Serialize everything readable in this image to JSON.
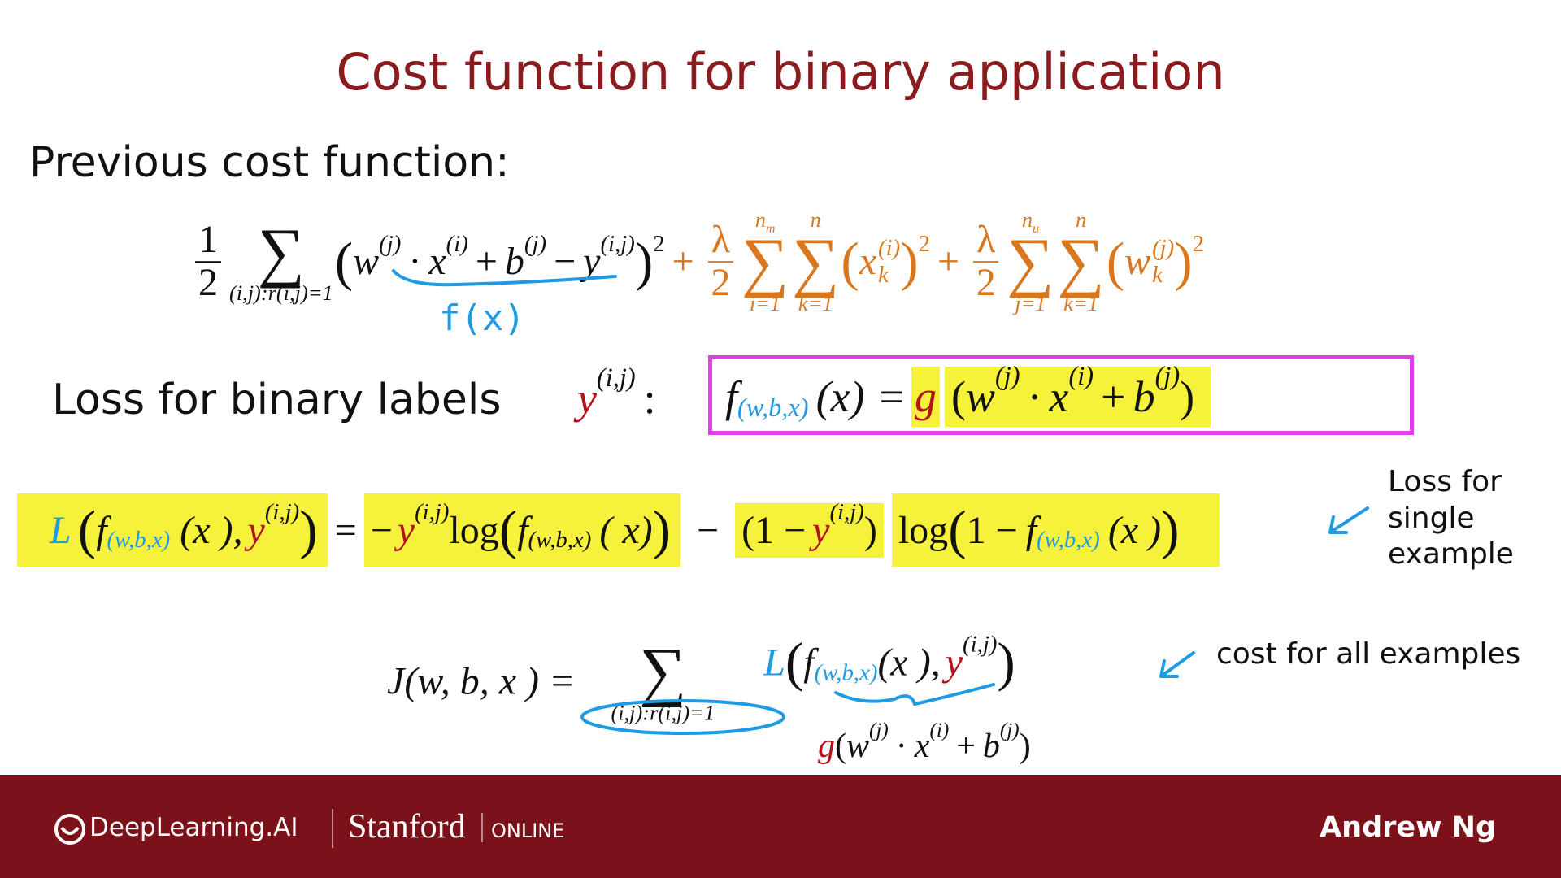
{
  "title": "Cost function for binary application",
  "previous_cost": {
    "label": "Previous cost function:",
    "formula": [
      "1",
      "2",
      "∑",
      "(i,j):r(i,j)=1",
      "(",
      "w",
      "(j)",
      "·",
      "x",
      "(i)",
      "+",
      "b",
      "(j)",
      "−",
      "y",
      "(i,j)",
      ")",
      "2",
      "+",
      "λ",
      "2",
      "n",
      "m",
      "∑",
      "i=1",
      "n",
      "∑",
      "k=1",
      "(",
      "x",
      "(i)",
      "k",
      ")",
      "2",
      "+",
      "λ",
      "2",
      "n",
      "u",
      "∑",
      "j=1",
      "n",
      "∑",
      "k=1",
      "(",
      "w",
      "(j)",
      "k",
      ")",
      "2"
    ]
  },
  "annotation_fx": "f(x)",
  "binary_loss": {
    "label": "Loss for binary labels",
    "target": [
      "y",
      "(i,j)",
      ":"
    ],
    "model": [
      "f",
      "(w,b,x)",
      "(x)",
      "=",
      "g",
      "(",
      "w",
      "(j)",
      "·",
      "x",
      "(i)",
      "+",
      "b",
      "(j)",
      ")"
    ]
  },
  "loss_formula": [
    "L",
    "(",
    "f",
    "(w,b,x)",
    "(x ),",
    "y",
    "(i,j)",
    ")",
    "=",
    "−",
    "y",
    "(i,j)",
    "log",
    "(",
    "f",
    "(w,b,x)",
    "( x)",
    ")",
    "−",
    "(1 −",
    "y",
    "(i,j)",
    ")",
    "log",
    "(",
    "1 −",
    "f",
    "(w,b,x)",
    "(x )",
    ")"
  ],
  "loss_note": [
    "Loss for",
    "single",
    "example"
  ],
  "cost_formula": [
    "J",
    "(w, b, x ) =",
    "∑",
    "(i,j):r(i,j)=1",
    "L",
    "(",
    "f",
    "(w,b,x)",
    "(x ),",
    "y",
    "(i,j)",
    ")"
  ],
  "cost_note": "cost for all examples",
  "g_note": [
    "g",
    "(",
    "w",
    "(j)",
    "·",
    "x",
    "(i)",
    "+",
    "b",
    "(j)",
    ")"
  ],
  "footer": {
    "logo": "DeepLearning.AI",
    "stanford": "Stanford",
    "online": "ONLINE",
    "author": "Andrew Ng"
  }
}
